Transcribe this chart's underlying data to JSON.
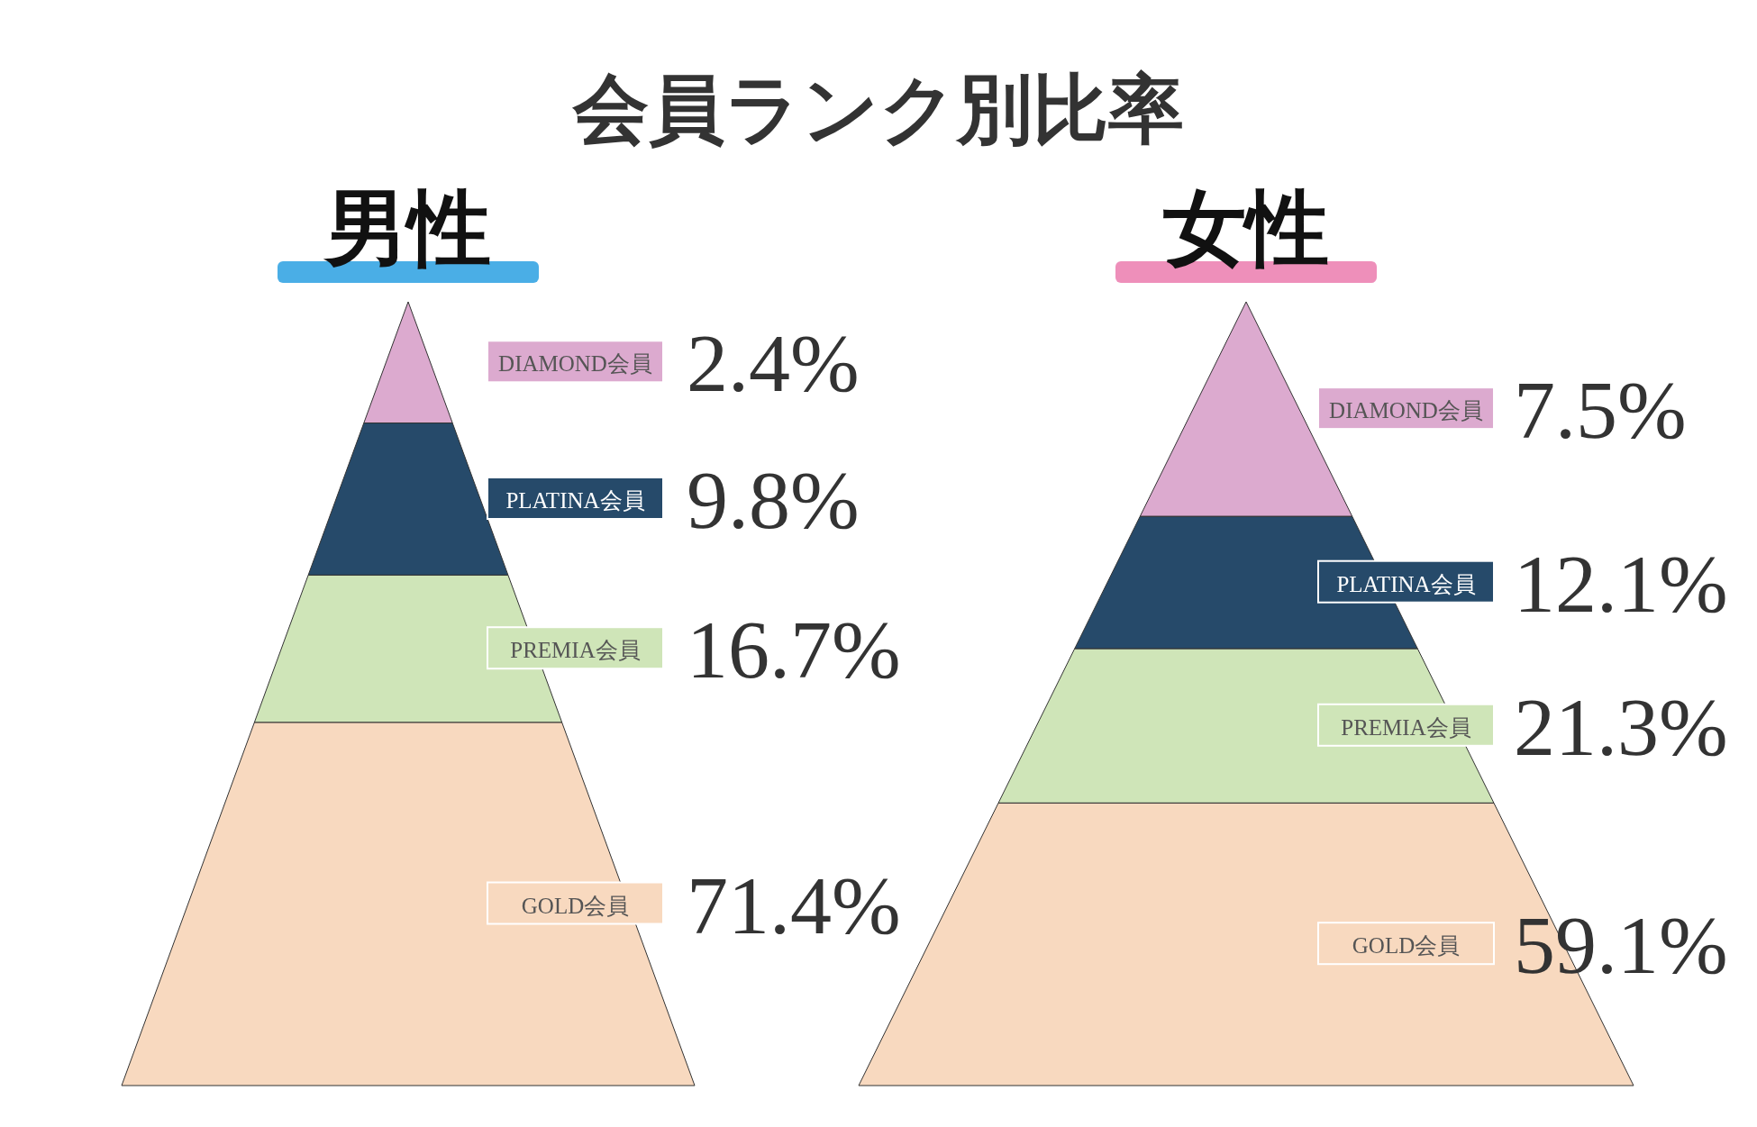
{
  "chart_data": [
    {
      "type": "other",
      "title": "会員ランク別比率"
    },
    {
      "type": "other",
      "title": "男性",
      "color": "#4aaee6",
      "categories": [
        "DIAMOND会員",
        "PLATINA会員",
        "PREMIA会員",
        "GOLD会員"
      ],
      "values": [
        2.4,
        9.8,
        16.7,
        71.4
      ],
      "value_labels": [
        "2.4%",
        "9.8%",
        "16.7%",
        "71.4%"
      ],
      "colors": [
        "#dcaacf",
        "#264a6a",
        "#cfe5b8",
        "#f8d9bf"
      ]
    },
    {
      "type": "other",
      "title": "女性",
      "color": "#ee8fba",
      "categories": [
        "DIAMOND会員",
        "PLATINA会員",
        "PREMIA会員",
        "GOLD会員"
      ],
      "values": [
        7.5,
        12.1,
        21.3,
        59.1
      ],
      "value_labels": [
        "7.5%",
        "12.1%",
        "21.3%",
        "59.1%"
      ],
      "colors": [
        "#dcaacf",
        "#264a6a",
        "#cfe5b8",
        "#f8d9bf"
      ]
    }
  ]
}
